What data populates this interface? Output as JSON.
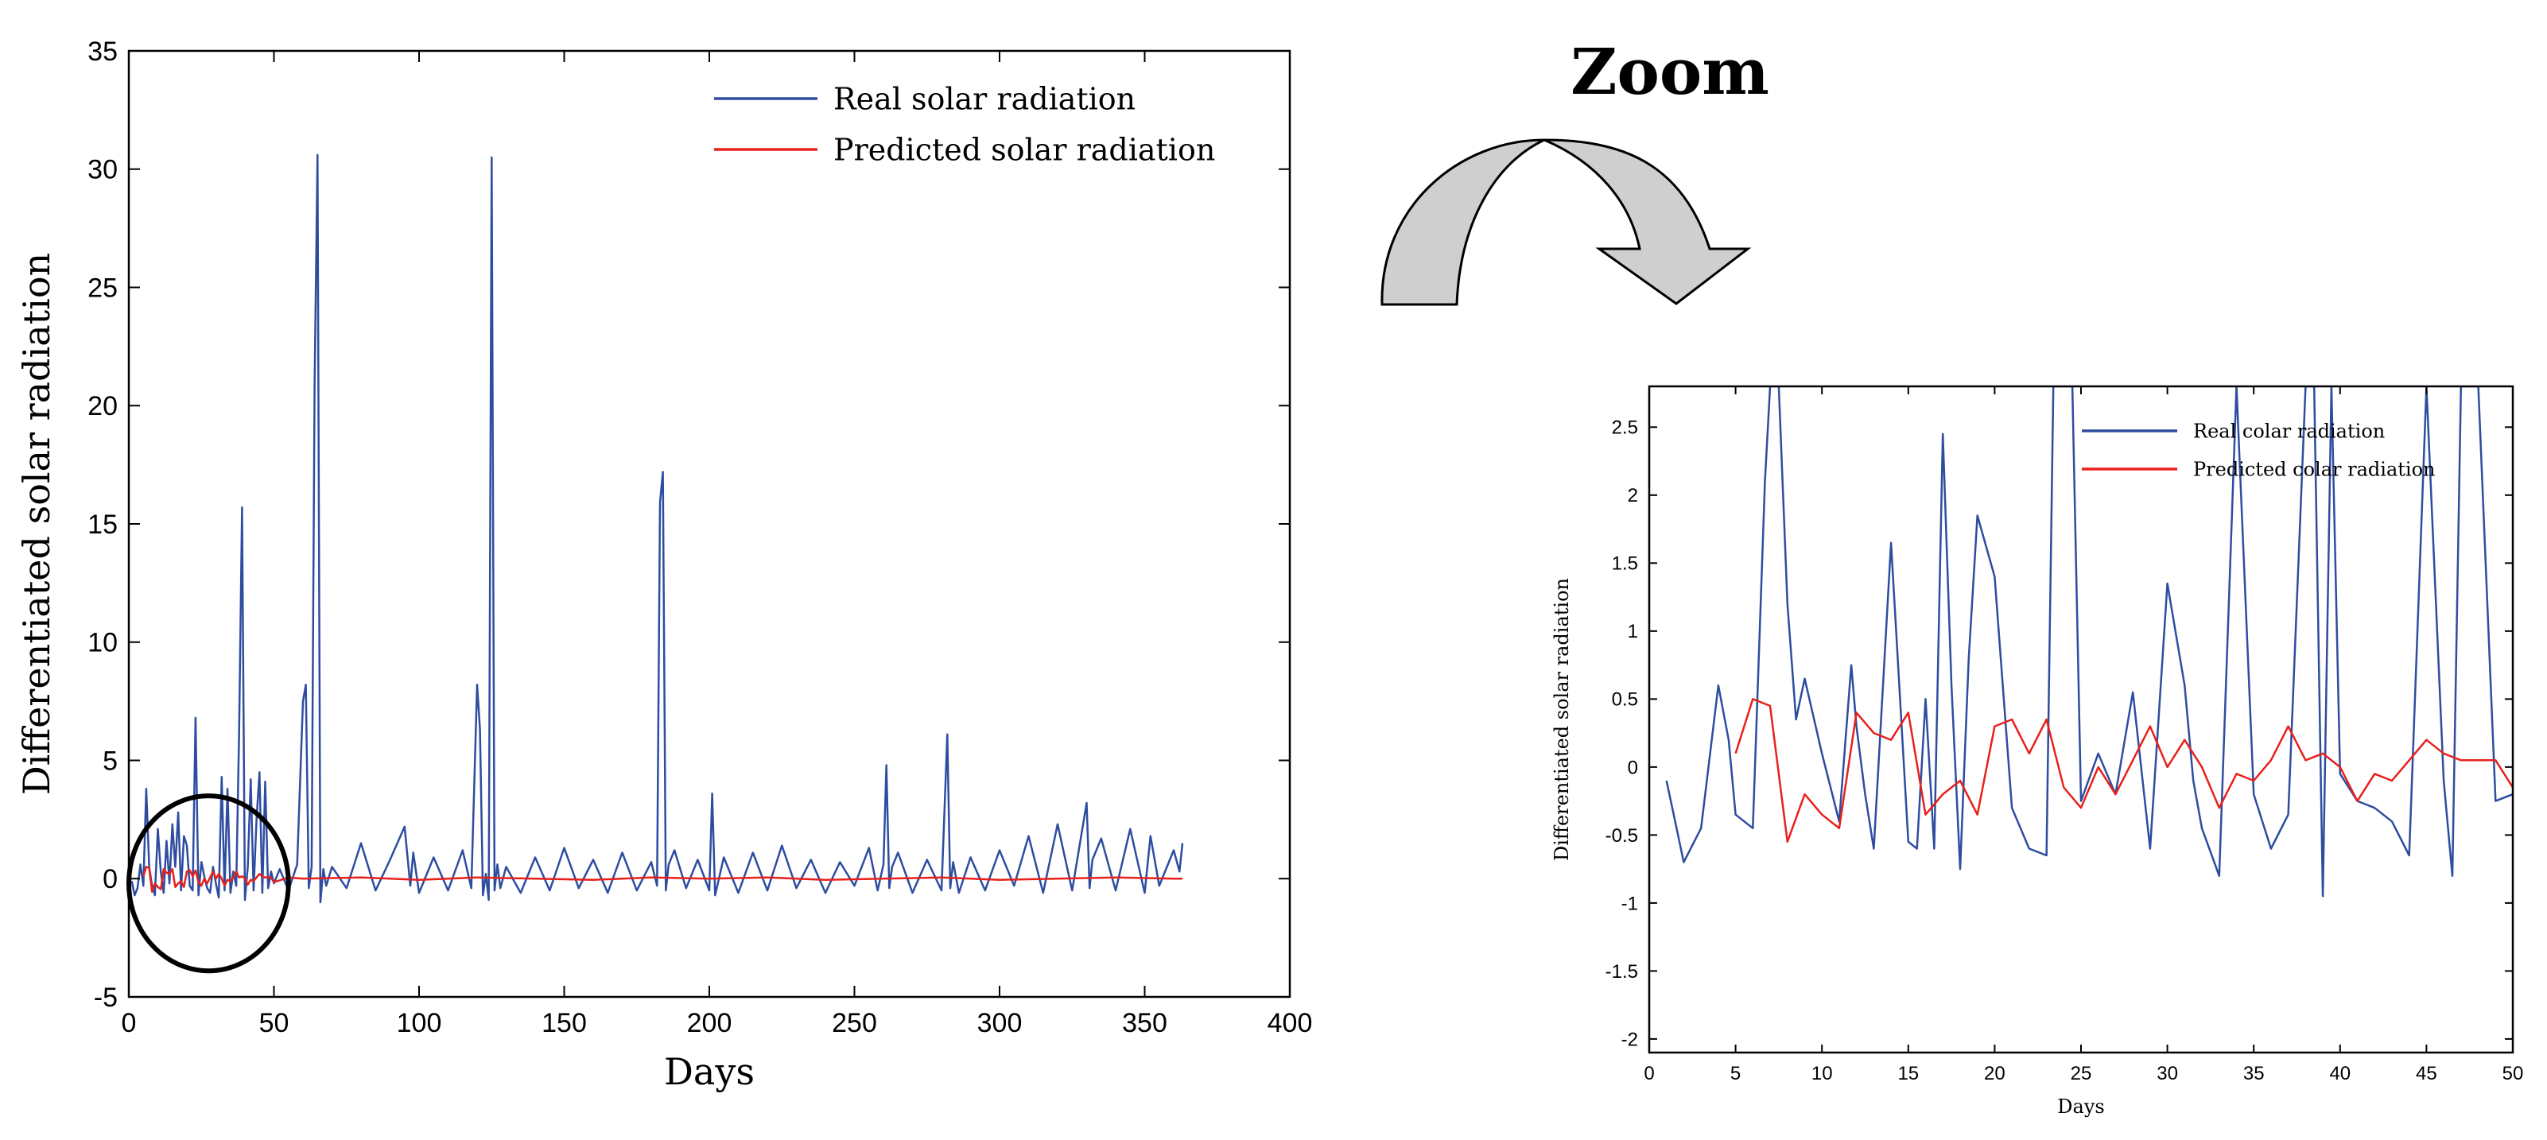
{
  "zoom_label": "Zoom",
  "colors": {
    "real": "#2e4da0",
    "predicted": "#e8201c",
    "arrow_fill": "#cfcfcf",
    "axis": "#000000"
  },
  "chart_data": [
    {
      "id": "main",
      "type": "line",
      "title": "",
      "xlabel": "Days",
      "ylabel": "Differentiated solar radiation",
      "xlim": [
        0,
        400
      ],
      "ylim": [
        -5,
        35
      ],
      "xticks": [
        0,
        50,
        100,
        150,
        200,
        250,
        300,
        350,
        400
      ],
      "yticks": [
        -5,
        0,
        5,
        10,
        15,
        20,
        25,
        30,
        35
      ],
      "legend": [
        "Real solar radiation",
        "Predicted solar radiation"
      ],
      "legend_position": "top-right",
      "annotation": "circle highlighting days 0-55 around y=0",
      "series": [
        {
          "name": "Real solar radiation",
          "color": "#2e4da0",
          "x": [
            1,
            2,
            3,
            4,
            5,
            6,
            7,
            8,
            9,
            10,
            11,
            12,
            13,
            14,
            15,
            16,
            17,
            18,
            19,
            20,
            21,
            22,
            23,
            24,
            25,
            26,
            27,
            28,
            29,
            30,
            31,
            32,
            33,
            34,
            35,
            36,
            37,
            38,
            39,
            40,
            41,
            42,
            43,
            44,
            45,
            46,
            47,
            48,
            49,
            50,
            52,
            55,
            58,
            60,
            61,
            62,
            63,
            64,
            65,
            66,
            67,
            68,
            70,
            75,
            80,
            85,
            90,
            95,
            97,
            98,
            100,
            105,
            110,
            115,
            118,
            120,
            121,
            122,
            123,
            124,
            125,
            126,
            127,
            128,
            130,
            135,
            140,
            145,
            150,
            155,
            160,
            165,
            170,
            175,
            180,
            182,
            183,
            184,
            185,
            186,
            188,
            192,
            196,
            200,
            201,
            202,
            205,
            210,
            215,
            220,
            225,
            230,
            235,
            240,
            245,
            250,
            255,
            258,
            260,
            261,
            262,
            263,
            265,
            270,
            275,
            280,
            282,
            283,
            284,
            286,
            290,
            295,
            300,
            305,
            310,
            315,
            320,
            325,
            330,
            331,
            332,
            335,
            340,
            345,
            350,
            352,
            355,
            360,
            362,
            363
          ],
          "y": [
            -0.1,
            -0.7,
            -0.4,
            0.6,
            -0.3,
            3.8,
            0.5,
            -0.3,
            -0.7,
            2.1,
            0.3,
            -0.6,
            1.6,
            -0.2,
            2.3,
            0.5,
            2.8,
            -0.5,
            1.8,
            1.4,
            -0.3,
            -0.5,
            6.8,
            -0.7,
            0.7,
            0.1,
            -0.4,
            -0.6,
            0.5,
            -0.2,
            -0.8,
            4.3,
            -0.5,
            3.8,
            -0.6,
            0.3,
            -0.3,
            6.2,
            15.7,
            -0.9,
            0.5,
            4.2,
            -0.5,
            2.5,
            4.5,
            -0.6,
            4.1,
            -0.4,
            0.3,
            -0.2,
            0.4,
            -0.5,
            0.6,
            7.5,
            8.2,
            -0.4,
            0.5,
            20.8,
            30.6,
            -1.0,
            0.4,
            -0.3,
            0.5,
            -0.4,
            1.5,
            -0.5,
            0.8,
            2.2,
            -0.3,
            1.1,
            -0.6,
            0.9,
            -0.5,
            1.2,
            -0.4,
            8.2,
            6.3,
            -0.7,
            0.2,
            -0.9,
            30.5,
            -0.5,
            0.6,
            -0.4,
            0.5,
            -0.6,
            0.9,
            -0.5,
            1.3,
            -0.4,
            0.8,
            -0.6,
            1.1,
            -0.5,
            0.7,
            -0.3,
            15.9,
            17.2,
            -0.5,
            0.6,
            1.2,
            -0.4,
            0.8,
            -0.5,
            3.6,
            -0.7,
            0.9,
            -0.6,
            1.1,
            -0.5,
            1.4,
            -0.4,
            0.8,
            -0.6,
            0.7,
            -0.3,
            1.3,
            -0.5,
            0.6,
            4.8,
            -0.4,
            0.5,
            1.1,
            -0.6,
            0.8,
            -0.5,
            6.1,
            -0.4,
            0.7,
            -0.6,
            0.9,
            -0.5,
            1.2,
            -0.3,
            1.8,
            -0.6,
            2.3,
            -0.5,
            3.2,
            -0.4,
            0.8,
            1.7,
            -0.5,
            2.1,
            -0.6,
            1.8,
            -0.3,
            1.2,
            0.3,
            1.5
          ]
        },
        {
          "name": "Predicted solar radiation",
          "color": "#e8201c",
          "x": [
            5,
            6,
            7,
            8,
            9,
            10,
            11,
            12,
            13,
            14,
            15,
            16,
            17,
            18,
            19,
            20,
            21,
            22,
            23,
            24,
            25,
            26,
            27,
            28,
            29,
            30,
            31,
            32,
            33,
            34,
            35,
            36,
            37,
            38,
            39,
            40,
            41,
            42,
            43,
            44,
            45,
            46,
            47,
            48,
            49,
            50,
            55,
            60,
            80,
            100,
            120,
            140,
            160,
            180,
            200,
            220,
            240,
            260,
            280,
            300,
            320,
            340,
            360,
            363
          ],
          "y": [
            0.1,
            0.5,
            0.45,
            -0.55,
            -0.2,
            -0.35,
            -0.45,
            0.4,
            0.25,
            0.2,
            0.4,
            -0.35,
            -0.2,
            -0.1,
            -0.35,
            0.3,
            0.35,
            0.1,
            0.35,
            -0.15,
            -0.3,
            0.0,
            -0.2,
            0.05,
            0.3,
            0.0,
            0.2,
            0.0,
            -0.3,
            -0.05,
            -0.1,
            0.05,
            0.3,
            0.05,
            0.1,
            0.0,
            -0.25,
            -0.05,
            -0.1,
            0.05,
            0.2,
            0.1,
            0.05,
            0.05,
            0.05,
            -0.15,
            0.05,
            0.0,
            0.05,
            -0.05,
            0.05,
            0.0,
            -0.05,
            0.05,
            0.0,
            0.05,
            -0.05,
            0.0,
            0.05,
            -0.05,
            0.0,
            0.05,
            0.0,
            0.0
          ]
        }
      ]
    },
    {
      "id": "zoom",
      "type": "line",
      "title": "",
      "xlabel": "Days",
      "ylabel": "Differentiated solar radiation",
      "xlim": [
        0,
        50
      ],
      "ylim": [
        -2.1,
        2.8
      ],
      "xticks": [
        0,
        5,
        10,
        15,
        20,
        25,
        30,
        35,
        40,
        45,
        50
      ],
      "yticks": [
        -2,
        -1.5,
        -1,
        -0.5,
        0,
        0.5,
        1,
        1.5,
        2,
        2.5
      ],
      "legend": [
        "Real colar radiation",
        "Predicted colar radiation"
      ],
      "legend_position": "top-right",
      "series": [
        {
          "name": "Real colar radiation",
          "color": "#2e4da0",
          "x": [
            1,
            1.5,
            2,
            3,
            4,
            4.6,
            5,
            6,
            6.7,
            7,
            7.5,
            8,
            8.5,
            9,
            10,
            11,
            11.7,
            12,
            12.5,
            13,
            14,
            15,
            15.5,
            16,
            16.5,
            17,
            17.5,
            18,
            18.5,
            19,
            20,
            21,
            22,
            23,
            23.4,
            24,
            24.5,
            25,
            26,
            27,
            28,
            29,
            30,
            31,
            31.5,
            32,
            33,
            34,
            35,
            36,
            37,
            38,
            38.5,
            39,
            39.5,
            40,
            41,
            42,
            43,
            44,
            45,
            46,
            46.5,
            47,
            48,
            49,
            50
          ],
          "y": [
            -0.1,
            -0.4,
            -0.7,
            -0.45,
            0.6,
            0.2,
            -0.35,
            -0.45,
            2.1,
            2.8,
            2.8,
            1.2,
            0.35,
            0.65,
            0.1,
            -0.4,
            0.75,
            0.3,
            -0.2,
            -0.6,
            1.65,
            -0.55,
            -0.6,
            0.5,
            -0.6,
            2.45,
            0.6,
            -0.75,
            0.8,
            1.85,
            1.4,
            -0.3,
            -0.6,
            -0.65,
            2.8,
            2.8,
            2.8,
            -0.25,
            0.1,
            -0.2,
            0.55,
            -0.6,
            1.35,
            0.6,
            -0.1,
            -0.45,
            -0.8,
            2.8,
            -0.2,
            -0.6,
            -0.35,
            2.8,
            2.8,
            -0.95,
            2.8,
            -0.05,
            -0.25,
            -0.3,
            -0.4,
            -0.65,
            2.8,
            -0.1,
            -0.8,
            2.8,
            2.8,
            -0.25,
            -0.2
          ]
        },
        {
          "name": "Predicted colar radiation",
          "color": "#e8201c",
          "x": [
            5,
            6,
            7,
            8,
            9,
            10,
            11,
            12,
            13,
            14,
            15,
            16,
            17,
            18,
            19,
            20,
            21,
            22,
            23,
            24,
            25,
            26,
            27,
            28,
            29,
            30,
            31,
            32,
            33,
            34,
            35,
            36,
            37,
            38,
            39,
            40,
            41,
            42,
            43,
            44,
            45,
            46,
            47,
            48,
            49,
            50
          ],
          "y": [
            0.1,
            0.5,
            0.45,
            -0.55,
            -0.2,
            -0.35,
            -0.45,
            0.4,
            0.25,
            0.2,
            0.4,
            -0.35,
            -0.2,
            -0.1,
            -0.35,
            0.3,
            0.35,
            0.1,
            0.35,
            -0.15,
            -0.3,
            0.0,
            -0.2,
            0.05,
            0.3,
            0.0,
            0.2,
            0.0,
            -0.3,
            -0.05,
            -0.1,
            0.05,
            0.3,
            0.05,
            0.1,
            0.0,
            -0.25,
            -0.05,
            -0.1,
            0.05,
            0.2,
            0.1,
            0.05,
            0.05,
            0.05,
            -0.15
          ]
        }
      ]
    }
  ]
}
